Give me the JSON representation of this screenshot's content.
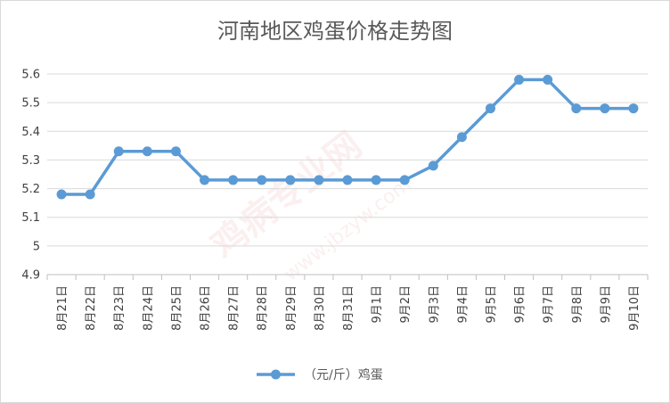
{
  "chart_data": {
    "type": "line",
    "title": "河南地区鸡蛋价格走势图",
    "categories": [
      "8月21日",
      "8月22日",
      "8月23日",
      "8月24日",
      "8月25日",
      "8月26日",
      "8月27日",
      "8月28日",
      "8月29日",
      "8月30日",
      "8月31日",
      "9月1日",
      "9月2日",
      "9月3日",
      "9月4日",
      "9月5日",
      "9月6日",
      "9月7日",
      "9月8日",
      "9月9日",
      "9月10日"
    ],
    "series": [
      {
        "name": "（元/斤）鸡蛋",
        "color": "#5b9bd5",
        "values": [
          5.18,
          5.18,
          5.33,
          5.33,
          5.33,
          5.23,
          5.23,
          5.23,
          5.23,
          5.23,
          5.23,
          5.23,
          5.23,
          5.28,
          5.38,
          5.48,
          5.58,
          5.58,
          5.48,
          5.48,
          5.48
        ]
      }
    ],
    "ylim": [
      4.9,
      5.6
    ],
    "yticks": [
      "4.9",
      "5",
      "5.1",
      "5.2",
      "5.3",
      "5.4",
      "5.5",
      "5.6"
    ],
    "grid": true,
    "legend_position": "bottom"
  },
  "colors": {
    "line": "#5b9bd5",
    "grid": "#d9d9d9",
    "text": "#595959",
    "watermark": "#f3c9c9"
  },
  "watermark": {
    "main": "鸡病专业网",
    "url": "www.jbzyw.com"
  }
}
